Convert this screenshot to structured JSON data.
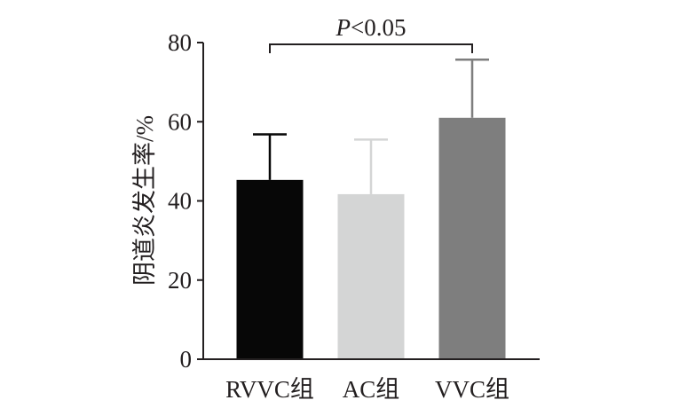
{
  "chart_data": {
    "type": "bar",
    "title": "",
    "xlabel": "",
    "ylabel": "阴道炎发生率/%",
    "categories": [
      "RVVC组",
      "AC组",
      "VVC组"
    ],
    "values": [
      45.3,
      41.7,
      61.0
    ],
    "errors": [
      11.5,
      13.8,
      14.7
    ],
    "colors": [
      "#070707",
      "#d4d5d5",
      "#7e7e7e"
    ],
    "error_colors": [
      "#070707",
      "#d4d5d5",
      "#7e7e7e"
    ],
    "ylim": [
      0,
      80
    ],
    "yticks": [
      0,
      20,
      40,
      60,
      80
    ],
    "significance": {
      "from": "RVVC组",
      "to": "VVC组",
      "label_italic": "P",
      "label_rest": "<0.05",
      "bracket_value": 80
    },
    "grid": false,
    "legend": "none"
  },
  "colors": {
    "axis": "#231f20",
    "text": "#231f20",
    "background": "#ffffff"
  }
}
